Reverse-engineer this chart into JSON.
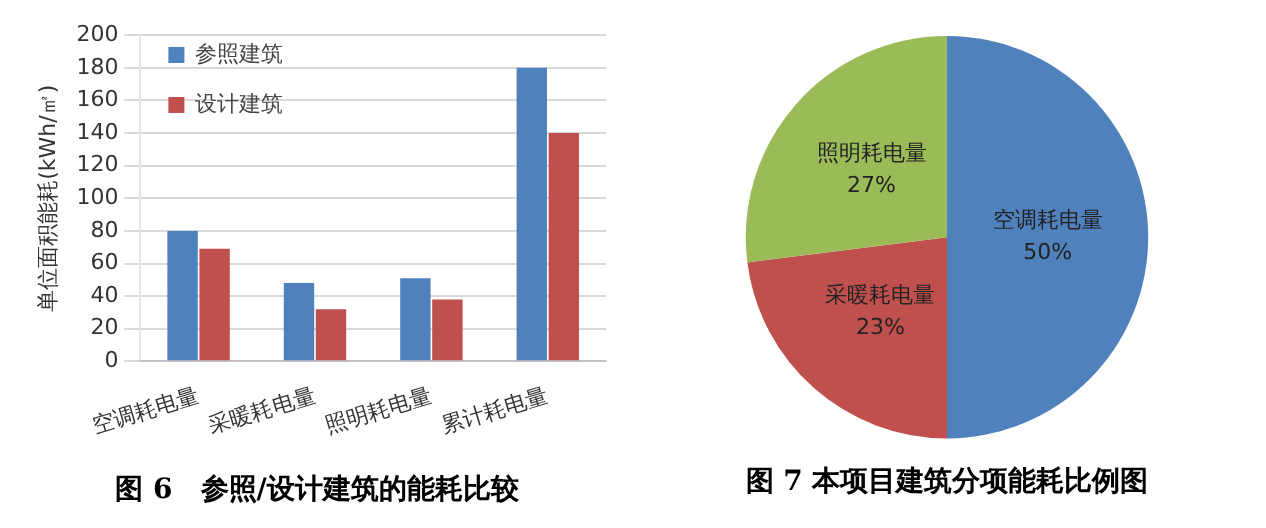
{
  "chart_data": [
    {
      "type": "bar",
      "title": "图 6　参照/设计建筑的能耗比较",
      "ylabel": "单位面积能耗(kWh/㎡)",
      "categories": [
        "空调耗电量",
        "采暖耗电量",
        "照明耗电量",
        "累计耗电量"
      ],
      "series": [
        {
          "name": "参照建筑",
          "color": "#4f81bd",
          "values": [
            80,
            48,
            51,
            180
          ]
        },
        {
          "name": "设计建筑",
          "color": "#c0504d",
          "values": [
            69,
            32,
            38,
            140
          ]
        }
      ],
      "ylim": [
        0,
        200
      ],
      "yticks": [
        0,
        20,
        40,
        60,
        80,
        100,
        120,
        140,
        160,
        180,
        200
      ],
      "grid": "y",
      "legend": "top left"
    },
    {
      "type": "pie",
      "title": "图 7 本项目建筑分项能耗比例图",
      "categories": [
        "空调耗电量",
        "采暖耗电量",
        "照明耗电量"
      ],
      "values": [
        50,
        23,
        27
      ],
      "colors": [
        "#4f81bd",
        "#c0504d",
        "#9bbb59"
      ],
      "value_labels": [
        "50%",
        "23%",
        "27%"
      ]
    }
  ]
}
